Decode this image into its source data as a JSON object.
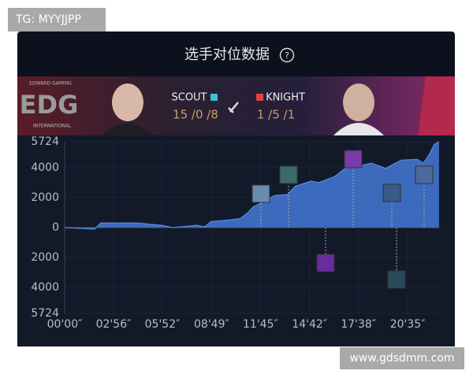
{
  "watermark_top": "TG: MYYJJPP",
  "watermark_bottom": "www.gdsdmm.com",
  "header": {
    "title": "选手对位数据",
    "help_icon": "?"
  },
  "team_left": {
    "logo_top": "EDWARD GAMING",
    "logo": "EDG",
    "logo_bottom": "INTERNATIONAL"
  },
  "players": [
    {
      "name": "SCOUT",
      "kda": "15 /0 /8",
      "color": "#3fc1d6"
    },
    {
      "name": "KNIGHT",
      "kda": "1 /5 /1",
      "color": "#e0413f"
    }
  ],
  "chart_data": {
    "type": "area",
    "x": [
      0,
      108,
      130,
      263,
      348,
      391,
      476,
      504,
      527,
      589,
      632,
      660,
      680,
      703,
      731,
      759,
      802,
      830,
      887,
      915,
      972,
      1000,
      1034,
      1057,
      1105,
      1156,
      1212,
      1269,
      1292,
      1312,
      1331,
      1348
    ],
    "series": [
      {
        "name": "SCOUT",
        "color": "#3f6fc4",
        "values": [
          0,
          -100,
          300,
          300,
          150,
          0,
          150,
          50,
          400,
          500,
          600,
          1000,
          1400,
          1600,
          1900,
          2150,
          2200,
          2750,
          3100,
          3000,
          3400,
          3800,
          4300,
          4100,
          4300,
          3950,
          4500,
          4550,
          4300,
          4850,
          5550,
          5724
        ]
      }
    ],
    "xlim": [
      0,
      1350
    ],
    "xticks": [
      {
        "value": 0,
        "label": "00'00″"
      },
      {
        "value": 176,
        "label": "02'56″"
      },
      {
        "value": 352,
        "label": "05'52″"
      },
      {
        "value": 529,
        "label": "08'49″"
      },
      {
        "value": 705,
        "label": "11'45″"
      },
      {
        "value": 882,
        "label": "14'42″"
      },
      {
        "value": 1058,
        "label": "17'38″"
      },
      {
        "value": 1235,
        "label": "20'35″"
      }
    ],
    "ylim": [
      -5724,
      5724
    ],
    "yticks": [
      5724,
      4000,
      2000,
      0,
      {
        "value": -2000,
        "label": "2000"
      },
      {
        "value": -4000,
        "label": "4000"
      },
      {
        "value": -5724,
        "label": "5724"
      }
    ],
    "grid": true
  }
}
